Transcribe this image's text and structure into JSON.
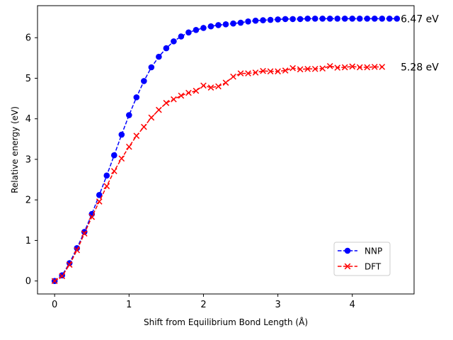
{
  "chart_data": {
    "type": "line",
    "title": "",
    "xlabel": "Shift from Equilibrium Bond Length (Å)",
    "ylabel": "Relative energy (eV)",
    "xlim": [
      -0.23,
      4.83
    ],
    "ylim": [
      -0.32,
      6.79
    ],
    "xticks": [
      0,
      1,
      2,
      3,
      4
    ],
    "yticks": [
      0,
      1,
      2,
      3,
      4,
      5,
      6
    ],
    "grid": false,
    "legend_position": "lower-right",
    "series": [
      {
        "name": "NNP",
        "color": "#0000ff",
        "marker": "circle",
        "linestyle": "dashed",
        "x": [
          0.0,
          0.1,
          0.2,
          0.3,
          0.4,
          0.5,
          0.6,
          0.7,
          0.8,
          0.9,
          1.0,
          1.1,
          1.2,
          1.3,
          1.4,
          1.5,
          1.6,
          1.7,
          1.8,
          1.9,
          2.0,
          2.1,
          2.2,
          2.3,
          2.4,
          2.5,
          2.6,
          2.7,
          2.8,
          2.9,
          3.0,
          3.1,
          3.2,
          3.3,
          3.4,
          3.5,
          3.6,
          3.7,
          3.8,
          3.9,
          4.0,
          4.1,
          4.2,
          4.3,
          4.4,
          4.5,
          4.6
        ],
        "y": [
          0.0,
          0.14,
          0.44,
          0.81,
          1.21,
          1.65,
          2.12,
          2.6,
          3.1,
          3.61,
          4.09,
          4.53,
          4.93,
          5.27,
          5.53,
          5.74,
          5.91,
          6.03,
          6.13,
          6.19,
          6.24,
          6.28,
          6.31,
          6.33,
          6.35,
          6.37,
          6.4,
          6.42,
          6.43,
          6.44,
          6.45,
          6.46,
          6.46,
          6.46,
          6.47,
          6.47,
          6.47,
          6.47,
          6.47,
          6.47,
          6.47,
          6.47,
          6.47,
          6.47,
          6.47,
          6.47,
          6.47
        ]
      },
      {
        "name": "DFT",
        "color": "#ff0000",
        "marker": "x",
        "linestyle": "dashed",
        "x": [
          0.0,
          0.1,
          0.2,
          0.3,
          0.4,
          0.5,
          0.6,
          0.7,
          0.8,
          0.9,
          1.0,
          1.1,
          1.2,
          1.3,
          1.4,
          1.5,
          1.6,
          1.7,
          1.8,
          1.9,
          2.0,
          2.1,
          2.2,
          2.3,
          2.4,
          2.5,
          2.6,
          2.7,
          2.8,
          2.9,
          3.0,
          3.1,
          3.2,
          3.3,
          3.4,
          3.5,
          3.6,
          3.7,
          3.8,
          3.9,
          4.0,
          4.1,
          4.2,
          4.3,
          4.4
        ],
        "y": [
          0.0,
          0.12,
          0.4,
          0.76,
          1.17,
          1.58,
          1.96,
          2.34,
          2.71,
          3.02,
          3.31,
          3.58,
          3.8,
          4.03,
          4.22,
          4.39,
          4.48,
          4.57,
          4.64,
          4.69,
          4.82,
          4.77,
          4.8,
          4.89,
          5.04,
          5.12,
          5.12,
          5.14,
          5.18,
          5.17,
          5.17,
          5.19,
          5.25,
          5.22,
          5.23,
          5.23,
          5.24,
          5.3,
          5.26,
          5.27,
          5.29,
          5.27,
          5.27,
          5.28,
          5.28
        ]
      }
    ],
    "annotations": [
      {
        "text": "6.47 eV",
        "x": 4.65,
        "y": 6.47
      },
      {
        "text": "5.28 eV",
        "x": 4.65,
        "y": 5.28
      }
    ]
  }
}
